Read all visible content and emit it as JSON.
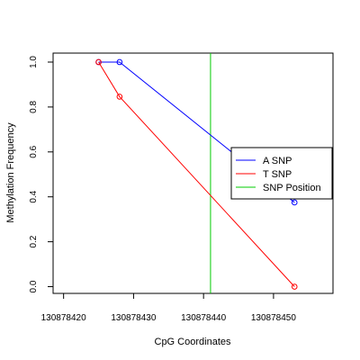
{
  "chart_data": {
    "type": "line",
    "title": "",
    "xlabel": "CpG Coordinates",
    "ylabel": "Methylation Frequency",
    "xlim": [
      130878418.5,
      130878458.5
    ],
    "ylim": [
      -0.03,
      1.04
    ],
    "x_ticks": [
      130878420,
      130878430,
      130878440,
      130878450
    ],
    "x_tick_labels": [
      "130878420",
      "130878430",
      "130878440",
      "130878450"
    ],
    "y_ticks": [
      0.0,
      0.2,
      0.4,
      0.6,
      0.8,
      1.0
    ],
    "y_tick_labels": [
      "0.0",
      "0.2",
      "0.4",
      "0.6",
      "0.8",
      "1.0"
    ],
    "series": [
      {
        "name": "A SNP",
        "color": "#0000ff",
        "points": [
          {
            "x": 130878425,
            "y": 1.0
          },
          {
            "x": 130878428,
            "y": 1.0
          },
          {
            "x": 130878453,
            "y": 0.375
          }
        ]
      },
      {
        "name": "T SNP",
        "color": "#ff0000",
        "points": [
          {
            "x": 130878425,
            "y": 1.0
          },
          {
            "x": 130878428,
            "y": 0.846
          },
          {
            "x": 130878453,
            "y": 0.0
          }
        ]
      }
    ],
    "snp_position": {
      "name": "SNP Position",
      "x": 130878441,
      "color": "#00cc00"
    },
    "legend": {
      "placement": "right",
      "entries": [
        {
          "label": "A SNP",
          "color": "#0000ff"
        },
        {
          "label": "T SNP",
          "color": "#ff0000"
        },
        {
          "label": "SNP Position",
          "color": "#00cc00"
        }
      ]
    },
    "grid": false
  }
}
